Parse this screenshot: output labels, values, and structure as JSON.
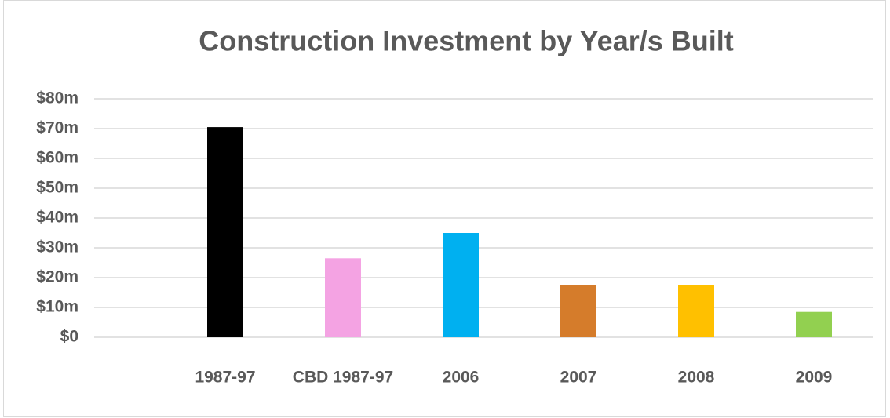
{
  "chart_data": {
    "type": "bar",
    "title": "Construction Investment by Year/s Built",
    "categories": [
      "1987-97",
      "CBD 1987-97",
      "2006",
      "2007",
      "2008",
      "2009"
    ],
    "values": [
      70.5,
      26.5,
      35,
      17.5,
      17.5,
      8.5
    ],
    "colors": [
      "#000000",
      "#f4a3e3",
      "#00b0f0",
      "#d57c2b",
      "#ffc000",
      "#92d050"
    ],
    "ylim": [
      0,
      80
    ],
    "yticks": [
      {
        "value": 0,
        "label": "$0"
      },
      {
        "value": 10,
        "label": "$10m"
      },
      {
        "value": 20,
        "label": "$20m"
      },
      {
        "value": 30,
        "label": "$30m"
      },
      {
        "value": 40,
        "label": "$40m"
      },
      {
        "value": 50,
        "label": "$50m"
      },
      {
        "value": 60,
        "label": "$60m"
      },
      {
        "value": 70,
        "label": "$70m"
      },
      {
        "value": 80,
        "label": "$80m"
      }
    ],
    "grid": true
  }
}
